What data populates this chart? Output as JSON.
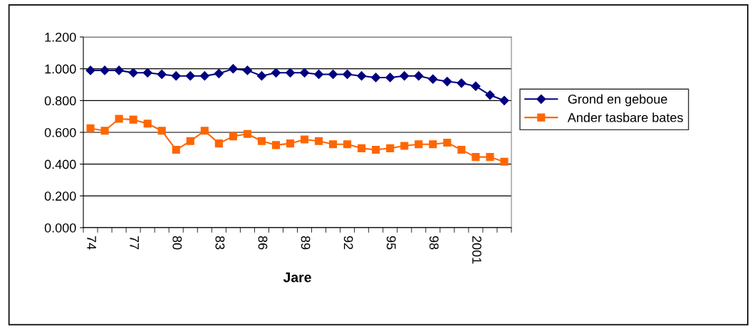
{
  "chart_data": {
    "type": "line",
    "xlabel": "Jare",
    "categories": [
      "74",
      null,
      null,
      "77",
      null,
      null,
      "80",
      null,
      null,
      "83",
      null,
      null,
      "86",
      null,
      null,
      "89",
      null,
      null,
      "92",
      null,
      null,
      "95",
      null,
      null,
      "98",
      null,
      null,
      "2001",
      null,
      null
    ],
    "series": [
      {
        "name": "Grond en geboue",
        "color": "#000080",
        "marker": "diamond",
        "values": [
          0.99,
          0.99,
          0.99,
          0.975,
          0.975,
          0.965,
          0.955,
          0.955,
          0.955,
          0.97,
          1.0,
          0.99,
          0.955,
          0.975,
          0.975,
          0.975,
          0.965,
          0.965,
          0.965,
          0.955,
          0.945,
          0.945,
          0.955,
          0.955,
          0.935,
          0.92,
          0.91,
          0.89,
          0.835,
          0.8
        ]
      },
      {
        "name": "Ander tasbare bates",
        "color": "#ff6600",
        "marker": "square",
        "values": [
          0.625,
          0.61,
          0.685,
          0.68,
          0.655,
          0.61,
          0.49,
          0.545,
          0.61,
          0.53,
          0.575,
          0.59,
          0.545,
          0.52,
          0.53,
          0.555,
          0.545,
          0.525,
          0.525,
          0.5,
          0.49,
          0.5,
          0.515,
          0.525,
          0.525,
          0.535,
          0.49,
          0.445,
          0.445,
          0.415
        ]
      }
    ],
    "ylim": [
      0,
      1.2
    ],
    "yticks": [
      {
        "value": 0,
        "label": "0.000"
      },
      {
        "value": 0.2,
        "label": "0.200"
      },
      {
        "value": 0.4,
        "label": "0.400"
      },
      {
        "value": 0.6,
        "label": "0.600"
      },
      {
        "value": 0.8,
        "label": "0.800"
      },
      {
        "value": 1.0,
        "label": "1.000"
      },
      {
        "value": 1.2,
        "label": "1.200"
      }
    ],
    "grid": "y",
    "legend": "right"
  }
}
